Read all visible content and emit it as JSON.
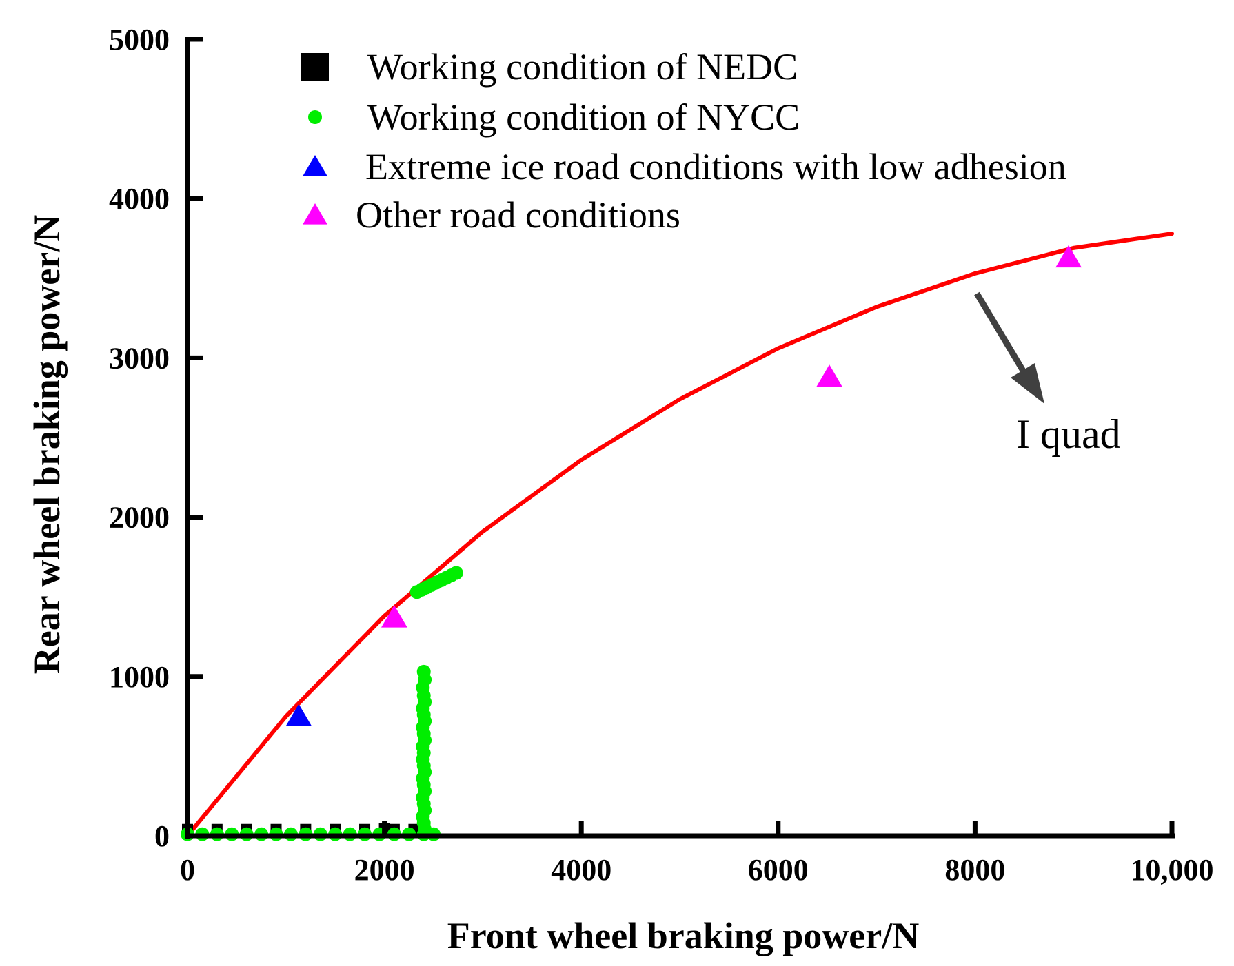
{
  "chart_data": {
    "type": "scatter",
    "xlabel": "Front wheel braking power/N",
    "ylabel": "Rear wheel braking power/N",
    "xlim": [
      0,
      10000
    ],
    "ylim": [
      0,
      5000
    ],
    "x_ticks": [
      0,
      2000,
      4000,
      6000,
      8000,
      10000
    ],
    "x_tick_labels": [
      "0",
      "2000",
      "4000",
      "6000",
      "8000",
      "10,000"
    ],
    "y_ticks": [
      0,
      1000,
      2000,
      3000,
      4000,
      5000
    ],
    "y_tick_labels": [
      "0",
      "1000",
      "2000",
      "3000",
      "4000",
      "5000"
    ],
    "grid": false,
    "legend_position": "top-left",
    "series": [
      {
        "name": "Working condition of NEDC",
        "marker": "square",
        "color": "#000000",
        "points": [
          [
            0,
            40
          ],
          [
            300,
            40
          ],
          [
            600,
            40
          ],
          [
            900,
            40
          ],
          [
            1200,
            40
          ],
          [
            1500,
            40
          ],
          [
            1800,
            40
          ],
          [
            2000,
            45
          ],
          [
            2100,
            40
          ],
          [
            2300,
            40
          ]
        ]
      },
      {
        "name": "Working condition of NYCC",
        "marker": "circle",
        "color": "#00ee00",
        "points": [
          [
            0,
            10
          ],
          [
            150,
            10
          ],
          [
            300,
            10
          ],
          [
            450,
            10
          ],
          [
            600,
            10
          ],
          [
            750,
            10
          ],
          [
            900,
            10
          ],
          [
            1050,
            10
          ],
          [
            1200,
            10
          ],
          [
            1350,
            10
          ],
          [
            1500,
            10
          ],
          [
            1650,
            10
          ],
          [
            1800,
            10
          ],
          [
            1950,
            10
          ],
          [
            2100,
            10
          ],
          [
            2250,
            10
          ],
          [
            2400,
            10
          ],
          [
            2500,
            10
          ],
          [
            2400,
            1030
          ],
          [
            2410,
            980
          ],
          [
            2390,
            930
          ],
          [
            2400,
            880
          ],
          [
            2410,
            840
          ],
          [
            2390,
            800
          ],
          [
            2400,
            760
          ],
          [
            2410,
            720
          ],
          [
            2390,
            680
          ],
          [
            2400,
            640
          ],
          [
            2410,
            600
          ],
          [
            2390,
            560
          ],
          [
            2400,
            520
          ],
          [
            2390,
            480
          ],
          [
            2400,
            440
          ],
          [
            2410,
            400
          ],
          [
            2390,
            360
          ],
          [
            2400,
            320
          ],
          [
            2410,
            280
          ],
          [
            2390,
            240
          ],
          [
            2400,
            200
          ],
          [
            2410,
            160
          ],
          [
            2390,
            120
          ],
          [
            2400,
            80
          ],
          [
            2410,
            40
          ],
          [
            2330,
            1530
          ],
          [
            2380,
            1545
          ],
          [
            2430,
            1560
          ],
          [
            2480,
            1575
          ],
          [
            2530,
            1590
          ],
          [
            2580,
            1605
          ],
          [
            2630,
            1620
          ],
          [
            2680,
            1635
          ],
          [
            2730,
            1650
          ]
        ]
      },
      {
        "name": "Extreme ice road conditions with low adhesion",
        "marker": "triangle",
        "color": "#0000ff",
        "points": [
          [
            1130,
            750
          ]
        ]
      },
      {
        "name": "Other road conditions",
        "marker": "triangle",
        "color": "#ff00ff",
        "points": [
          [
            2100,
            1370
          ],
          [
            6520,
            2880
          ],
          [
            8950,
            3630
          ]
        ]
      }
    ],
    "curve": {
      "label": "I quad",
      "color": "#ff0000",
      "points": [
        [
          0,
          0
        ],
        [
          1000,
          750
        ],
        [
          2000,
          1380
        ],
        [
          3000,
          1910
        ],
        [
          4000,
          2360
        ],
        [
          5000,
          2740
        ],
        [
          6000,
          3060
        ],
        [
          7000,
          3320
        ],
        [
          8000,
          3530
        ],
        [
          9000,
          3690
        ],
        [
          10000,
          3780
        ]
      ]
    }
  }
}
